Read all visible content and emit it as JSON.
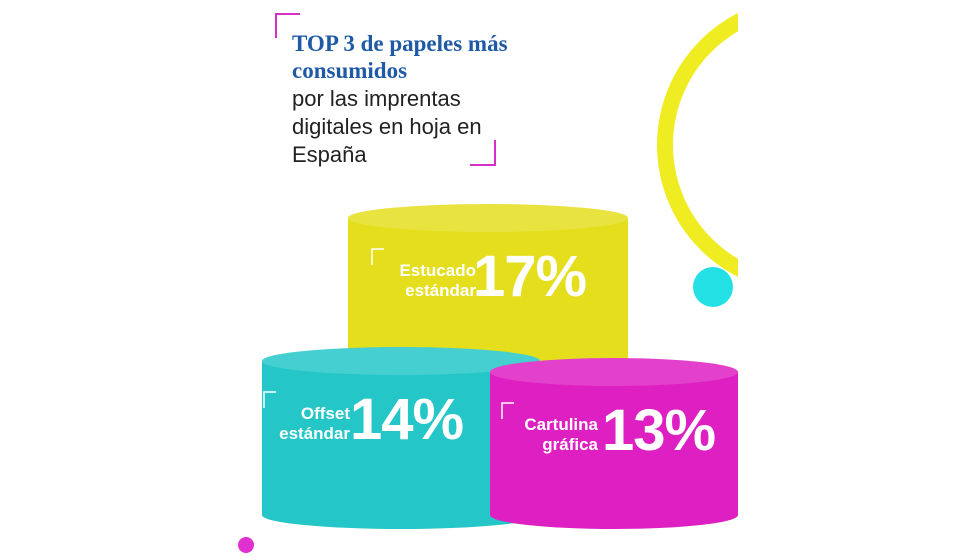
{
  "chart_data": {
    "type": "podium",
    "title": "TOP 3 de papeles más consumidos",
    "subtitle": "por las imprentas digitales en hoja en España",
    "categories": [
      "Estucado estándar",
      "Offset estándar",
      "Cartulina gráfica"
    ],
    "values": [
      17,
      14,
      13
    ],
    "value_labels": [
      "17%",
      "14%",
      "13%"
    ],
    "colors": [
      "#e4de1c",
      "#25c6c8",
      "#de1fc2"
    ]
  }
}
